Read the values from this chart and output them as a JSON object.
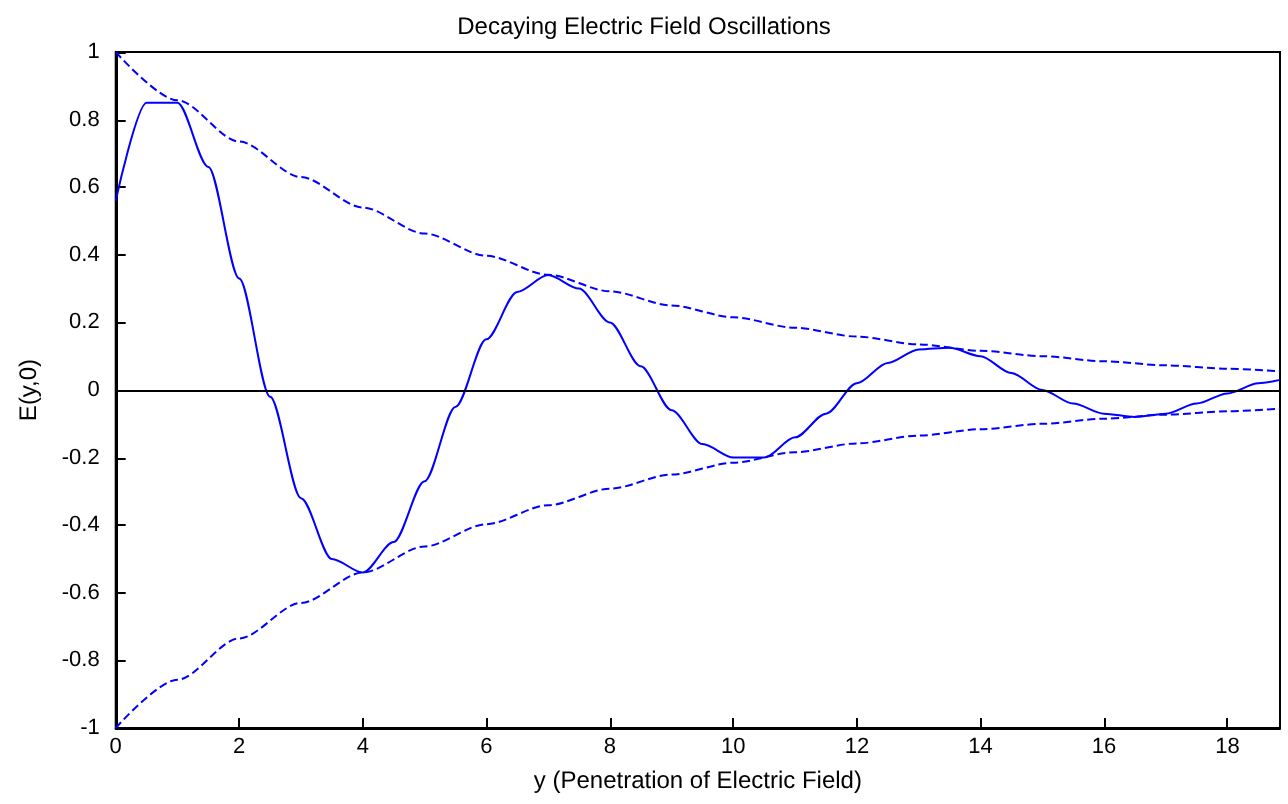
{
  "chart_data": {
    "type": "line",
    "title": "Decaying Electric Field Oscillations",
    "xlabel": "y (Penetration of Electric Field)",
    "ylabel": "E(y,0)",
    "xlim": [
      0,
      18.85
    ],
    "xticks": [
      0,
      2,
      4,
      6,
      8,
      10,
      12,
      14,
      16,
      18
    ],
    "ylim": [
      -1,
      1
    ],
    "yticks": [
      -1,
      -0.8,
      -0.6,
      -0.4,
      -0.2,
      0,
      0.2,
      0.4,
      0.6,
      0.8,
      1
    ],
    "grid": false,
    "marker": "none",
    "series": [
      {
        "color": "#0000ff",
        "line_style": "solid",
        "x": [
          0,
          0.5,
          1,
          1.5,
          2,
          2.5,
          3,
          3.5,
          4,
          4.5,
          5,
          5.5,
          6,
          6.5,
          7,
          7.5,
          8,
          8.5,
          9,
          9.5,
          10,
          10.5,
          11,
          11.5,
          12,
          12.5,
          13,
          13.5,
          14,
          14.5,
          15,
          15.5,
          16,
          16.5,
          17,
          17.5,
          18,
          18.5,
          18.85
        ],
        "values": [
          0.56,
          0.85,
          0.85,
          0.66,
          0.33,
          -0.02,
          -0.32,
          -0.5,
          -0.54,
          -0.45,
          -0.27,
          -0.05,
          0.15,
          0.29,
          0.34,
          0.3,
          0.2,
          0.07,
          -0.06,
          -0.16,
          -0.2,
          -0.2,
          -0.14,
          -0.07,
          0.02,
          0.08,
          0.12,
          0.125,
          0.1,
          0.05,
          0,
          -0.04,
          -0.07,
          -0.08,
          -0.07,
          -0.04,
          -0.01,
          0.02,
          0.03
        ]
      },
      {
        "color": "#0000ff",
        "line_style": "dashed",
        "x": [
          0,
          1,
          2,
          3,
          4,
          5,
          6,
          7,
          8,
          9,
          10,
          11,
          12,
          13,
          14,
          15,
          16,
          17,
          18,
          18.85
        ],
        "values": [
          1,
          0.857,
          0.735,
          0.63,
          0.54,
          0.463,
          0.397,
          0.341,
          0.292,
          0.25,
          0.215,
          0.184,
          0.158,
          0.135,
          0.116,
          0.1,
          0.085,
          0.073,
          0.063,
          0.055
        ]
      },
      {
        "color": "#0000ff",
        "line_style": "dashed",
        "x": [
          0,
          1,
          2,
          3,
          4,
          5,
          6,
          7,
          8,
          9,
          10,
          11,
          12,
          13,
          14,
          15,
          16,
          17,
          18,
          18.85
        ],
        "values": [
          -1,
          -0.857,
          -0.735,
          -0.63,
          -0.54,
          -0.463,
          -0.397,
          -0.341,
          -0.292,
          -0.25,
          -0.215,
          -0.184,
          -0.158,
          -0.135,
          -0.116,
          -0.1,
          -0.085,
          -0.073,
          -0.063,
          -0.055
        ]
      }
    ],
    "ref_lines": [
      {
        "axis": "y",
        "value": 0,
        "color": "#000000",
        "line_style": "solid"
      }
    ]
  }
}
